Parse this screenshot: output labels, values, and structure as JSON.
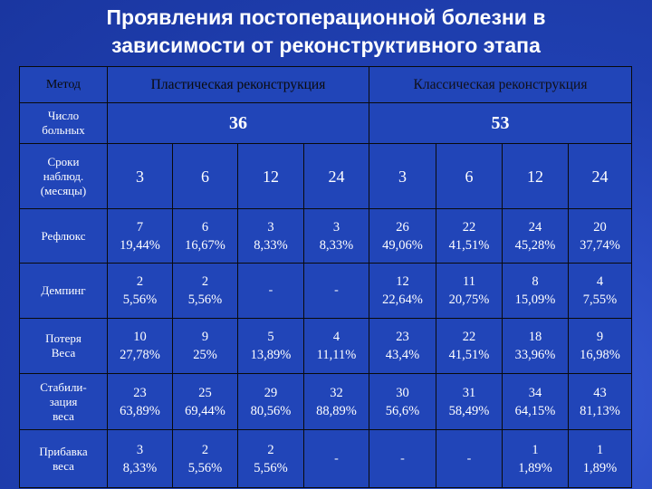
{
  "title": {
    "line1": "Проявления постоперационной болезни в",
    "line2": "зависимости от реконструктивного этапа"
  },
  "table": {
    "header": {
      "method": "Метод",
      "plastic": "Пластическая реконструкция",
      "classic": "Классическая реконструкция"
    },
    "patients": {
      "label_line1": "Число",
      "label_line2": "больных",
      "plastic": "36",
      "classic": "53"
    },
    "months": {
      "label_line1": "Сроки",
      "label_line2": "наблюд.",
      "label_line3": "(месяцы)",
      "values": [
        "3",
        "6",
        "12",
        "24",
        "3",
        "6",
        "12",
        "24"
      ]
    },
    "rows": [
      {
        "label_line1": "Рефлюкс",
        "label_line2": "",
        "cells": [
          {
            "n": "7",
            "p": "19,44%"
          },
          {
            "n": "6",
            "p": "16,67%"
          },
          {
            "n": "3",
            "p": "8,33%"
          },
          {
            "n": "3",
            "p": "8,33%"
          },
          {
            "n": "26",
            "p": "49,06%"
          },
          {
            "n": "22",
            "p": "41,51%"
          },
          {
            "n": "24",
            "p": "45,28%"
          },
          {
            "n": "20",
            "p": "37,74%"
          }
        ]
      },
      {
        "label_line1": "Демпинг",
        "label_line2": "",
        "cells": [
          {
            "n": "2",
            "p": "5,56%"
          },
          {
            "n": "2",
            "p": "5,56%"
          },
          {
            "n": "-",
            "p": ""
          },
          {
            "n": "-",
            "p": ""
          },
          {
            "n": "12",
            "p": "22,64%"
          },
          {
            "n": "11",
            "p": "20,75%"
          },
          {
            "n": "8",
            "p": "15,09%"
          },
          {
            "n": "4",
            "p": "7,55%"
          }
        ]
      },
      {
        "label_line1": "Потеря",
        "label_line2": "Веса",
        "cells": [
          {
            "n": "10",
            "p": "27,78%"
          },
          {
            "n": "9",
            "p": "25%"
          },
          {
            "n": "5",
            "p": "13,89%"
          },
          {
            "n": "4",
            "p": "11,11%"
          },
          {
            "n": "23",
            "p": "43,4%"
          },
          {
            "n": "22",
            "p": "41,51%"
          },
          {
            "n": "18",
            "p": "33,96%"
          },
          {
            "n": "9",
            "p": "16,98%"
          }
        ]
      },
      {
        "label_line1": "Стабили-",
        "label_line2": "зация",
        "label_line3": "веса",
        "cells": [
          {
            "n": "23",
            "p": "63,89%"
          },
          {
            "n": "25",
            "p": "69,44%"
          },
          {
            "n": "29",
            "p": "80,56%"
          },
          {
            "n": "32",
            "p": "88,89%"
          },
          {
            "n": "30",
            "p": "56,6%"
          },
          {
            "n": "31",
            "p": "58,49%"
          },
          {
            "n": "34",
            "p": "64,15%"
          },
          {
            "n": "43",
            "p": "81,13%"
          }
        ]
      },
      {
        "label_line1": "Прибавка",
        "label_line2": "веса",
        "cells": [
          {
            "n": "3",
            "p": "8,33%"
          },
          {
            "n": "2",
            "p": "5,56%"
          },
          {
            "n": "2",
            "p": "5,56%"
          },
          {
            "n": "-",
            "p": ""
          },
          {
            "n": "-",
            "p": ""
          },
          {
            "n": "-",
            "p": ""
          },
          {
            "n": "1",
            "p": "1,89%"
          },
          {
            "n": "1",
            "p": "1,89%"
          }
        ]
      }
    ]
  }
}
